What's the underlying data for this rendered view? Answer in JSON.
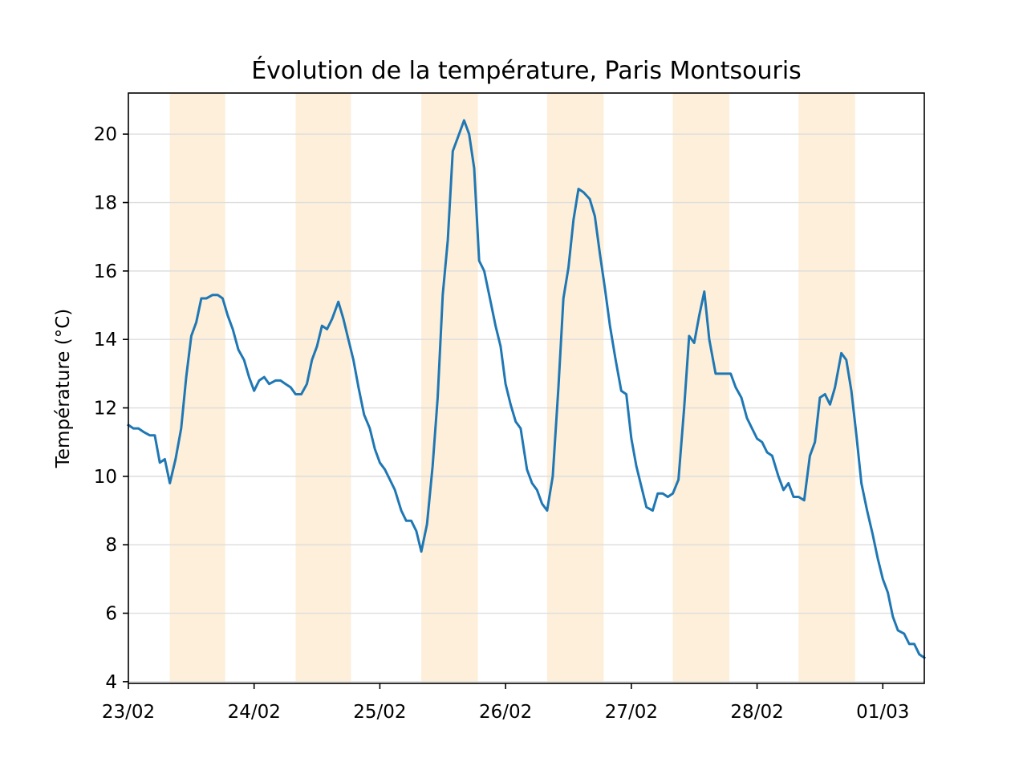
{
  "chart_data": {
    "type": "line",
    "title": "Évolution de la température, Paris Montsouris",
    "xlabel": "",
    "ylabel": "Température (°C)",
    "x_tick_labels": [
      "23/02",
      "24/02",
      "25/02",
      "26/02",
      "27/02",
      "28/02",
      "01/03"
    ],
    "x_ticks": [
      0,
      1,
      2,
      3,
      4,
      5,
      6
    ],
    "y_ticks": [
      4,
      6,
      8,
      10,
      12,
      14,
      16,
      18,
      20
    ],
    "xlim": [
      0,
      6.33
    ],
    "ylim": [
      3.95,
      21.2
    ],
    "grid": "horizontal",
    "daylight_bands": [
      [
        0.33,
        0.77
      ],
      [
        1.33,
        1.77
      ],
      [
        2.33,
        2.78
      ],
      [
        3.33,
        3.78
      ],
      [
        4.33,
        4.78
      ],
      [
        5.33,
        5.78
      ]
    ],
    "colors": {
      "line": "#1f77b4",
      "band": "#fdefd9",
      "grid": "#dddddd"
    },
    "series": [
      {
        "name": "",
        "x": [
          0,
          0.04,
          0.08,
          0.12,
          0.17,
          0.21,
          0.25,
          0.29,
          0.33,
          0.375,
          0.42,
          0.46,
          0.5,
          0.54,
          0.58,
          0.62,
          0.67,
          0.71,
          0.75,
          0.79,
          0.83,
          0.875,
          0.92,
          0.96,
          1.0,
          1.04,
          1.08,
          1.12,
          1.17,
          1.21,
          1.25,
          1.29,
          1.33,
          1.375,
          1.42,
          1.46,
          1.5,
          1.54,
          1.58,
          1.62,
          1.67,
          1.71,
          1.75,
          1.79,
          1.83,
          1.875,
          1.92,
          1.96,
          2.0,
          2.04,
          2.08,
          2.12,
          2.17,
          2.21,
          2.25,
          2.29,
          2.33,
          2.375,
          2.42,
          2.46,
          2.5,
          2.54,
          2.58,
          2.62,
          2.67,
          2.71,
          2.75,
          2.79,
          2.83,
          2.875,
          2.92,
          2.96,
          3.0,
          3.04,
          3.08,
          3.12,
          3.17,
          3.21,
          3.25,
          3.29,
          3.33,
          3.375,
          3.42,
          3.46,
          3.5,
          3.54,
          3.58,
          3.62,
          3.67,
          3.71,
          3.75,
          3.79,
          3.83,
          3.875,
          3.92,
          3.96,
          4.0,
          4.04,
          4.08,
          4.12,
          4.17,
          4.21,
          4.25,
          4.29,
          4.33,
          4.375,
          4.42,
          4.46,
          4.5,
          4.54,
          4.58,
          4.62,
          4.67,
          4.71,
          4.75,
          4.79,
          4.83,
          4.875,
          4.92,
          4.96,
          5.0,
          5.04,
          5.08,
          5.12,
          5.17,
          5.21,
          5.25,
          5.29,
          5.33,
          5.375,
          5.42,
          5.46,
          5.5,
          5.54,
          5.58,
          5.62,
          5.67,
          5.71,
          5.75,
          5.79,
          5.83,
          5.875,
          5.92,
          5.96,
          6.0,
          6.04,
          6.08,
          6.12,
          6.17,
          6.21,
          6.25,
          6.29,
          6.33
        ],
        "values": [
          11.5,
          11.4,
          11.4,
          11.3,
          11.2,
          11.2,
          10.4,
          10.5,
          9.8,
          10.5,
          11.4,
          12.9,
          14.1,
          14.5,
          15.2,
          15.2,
          15.3,
          15.3,
          15.2,
          14.7,
          14.3,
          13.7,
          13.4,
          12.9,
          12.5,
          12.8,
          12.9,
          12.7,
          12.8,
          12.8,
          12.7,
          12.6,
          12.4,
          12.4,
          12.7,
          13.4,
          13.8,
          14.4,
          14.3,
          14.6,
          15.1,
          14.6,
          14.0,
          13.4,
          12.6,
          11.8,
          11.4,
          10.8,
          10.4,
          10.2,
          9.9,
          9.6,
          9.0,
          8.7,
          8.7,
          8.4,
          7.8,
          8.6,
          10.3,
          12.3,
          15.3,
          16.9,
          19.5,
          19.9,
          20.4,
          20.0,
          19.0,
          16.3,
          16.0,
          15.2,
          14.4,
          13.8,
          12.7,
          12.1,
          11.6,
          11.4,
          10.2,
          9.8,
          9.6,
          9.2,
          9.0,
          10.0,
          12.6,
          15.2,
          16.1,
          17.5,
          18.4,
          18.3,
          18.1,
          17.6,
          16.5,
          15.5,
          14.4,
          13.4,
          12.5,
          12.4,
          11.1,
          10.3,
          9.7,
          9.1,
          9.0,
          9.5,
          9.5,
          9.4,
          9.5,
          9.9,
          12.0,
          14.1,
          13.9,
          14.7,
          15.4,
          14.0,
          13.0,
          13.0,
          13.0,
          13.0,
          12.6,
          12.3,
          11.7,
          11.4,
          11.1,
          11.0,
          10.7,
          10.6,
          10.0,
          9.6,
          9.8,
          9.4,
          9.4,
          9.3,
          10.6,
          11.0,
          12.3,
          12.4,
          12.1,
          12.6,
          13.6,
          13.4,
          12.5,
          11.2,
          9.8,
          9.0,
          8.3,
          7.6,
          7.0,
          6.6,
          5.9,
          5.5,
          5.4,
          5.1,
          5.1,
          4.8,
          4.7
        ]
      }
    ]
  }
}
